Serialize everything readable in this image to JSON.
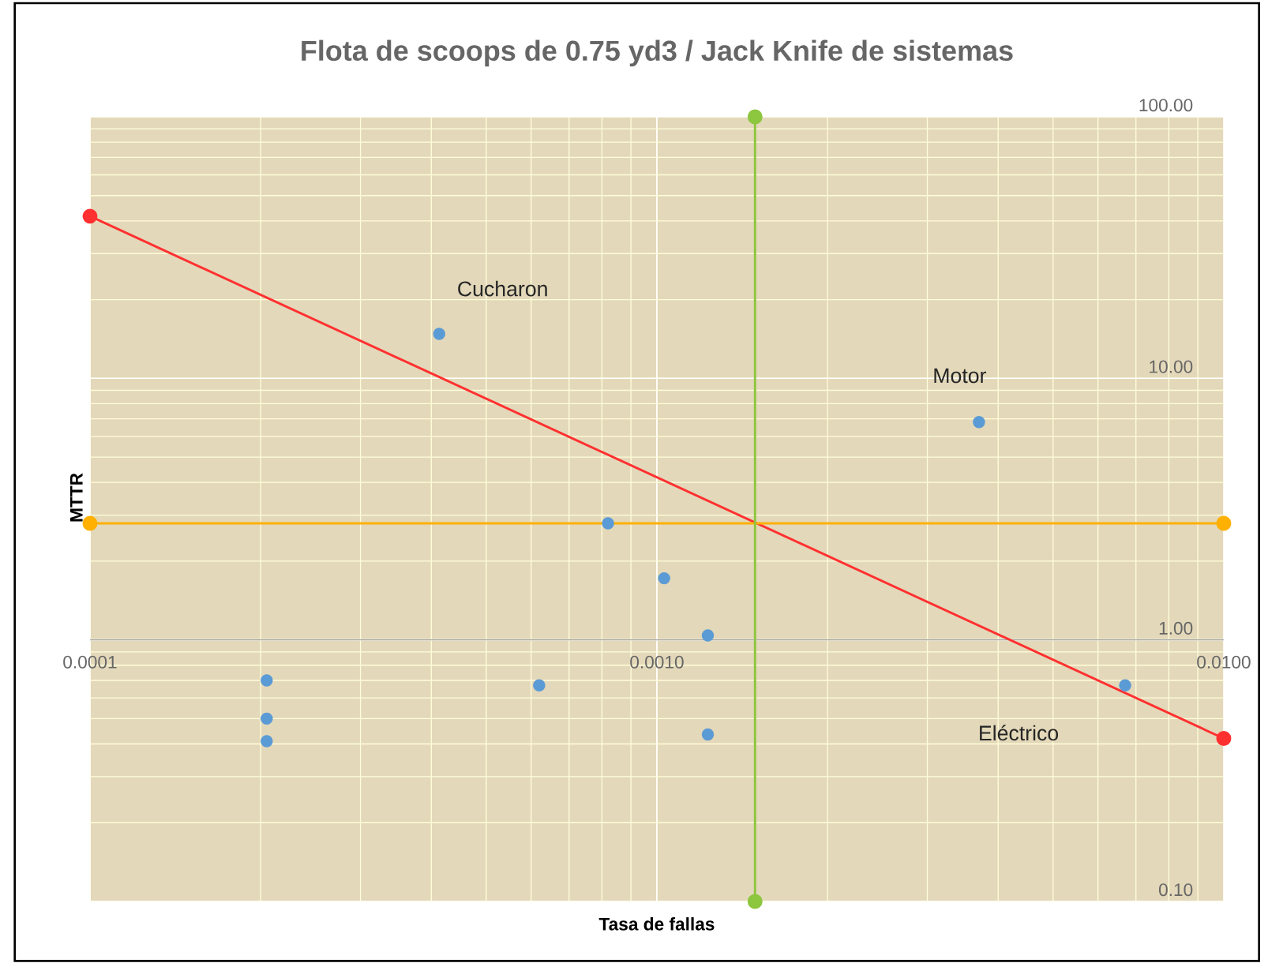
{
  "chart_data": {
    "type": "scatter",
    "title": "Flota de scoops de 0.75 yd3 / Jack Knife de sistemas",
    "xlabel": "Tasa  de fallas",
    "ylabel": "MTTR",
    "x": [
      0.000413,
      0.0037,
      0.00082,
      0.00103,
      0.00123,
      0.0067,
      0.000205,
      0.000205,
      0.000205,
      0.00062,
      0.00123
    ],
    "series": [
      {
        "color": "#5b9bd5",
        "values": [
          14.8,
          6.8,
          2.79,
          1.72,
          1.04,
          0.67,
          0.7,
          0.5,
          0.41,
          0.67,
          0.435
        ]
      },
      {
        "type": "line",
        "color": "#ff3030",
        "x": [
          0.0001,
          0.01
        ],
        "values": [
          41.7,
          0.42
        ]
      },
      {
        "type": "line",
        "color": "#ffb000",
        "x": [
          0.0001,
          0.01
        ],
        "values": [
          2.79,
          2.79
        ]
      },
      {
        "type": "line",
        "color": "#8dc63f",
        "x": [
          0.00149,
          0.00149
        ],
        "values": [
          100,
          0.1
        ]
      }
    ],
    "xlim": [
      0.0001,
      0.01
    ],
    "ylim": [
      0.1,
      100
    ],
    "xticks": [
      {
        "value": 0.0001,
        "label": "0.0001"
      },
      {
        "value": 0.001,
        "label": "0.0010"
      },
      {
        "value": 0.01,
        "label": "0.0100"
      }
    ],
    "yticks": [
      {
        "value": 0.1,
        "label": "0.10"
      },
      {
        "value": 1,
        "label": "1.00"
      },
      {
        "value": 10,
        "label": "10.00"
      },
      {
        "value": 100,
        "label": "100.00"
      }
    ],
    "log": "xy",
    "grid": true,
    "marker": "circle",
    "line_style": "solid",
    "annotations": [
      "Cucharon",
      "Motor",
      "Eléctrico"
    ]
  }
}
